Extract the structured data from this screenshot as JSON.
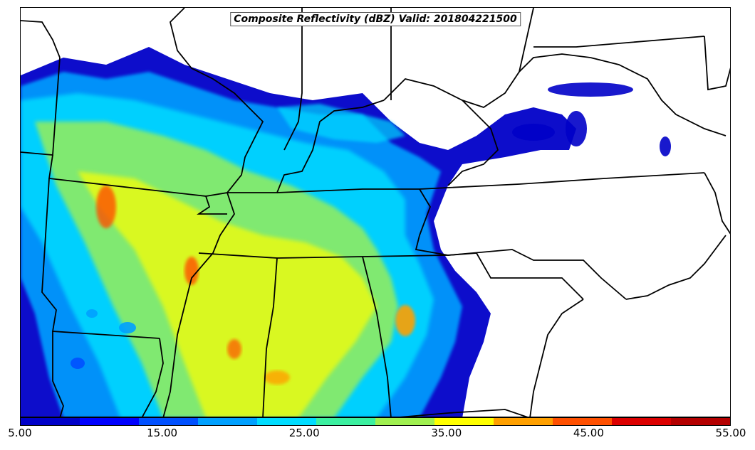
{
  "map": {
    "title": "Composite Reflectivity (dBZ) Valid: 201804221500",
    "colorbar": {
      "colors": [
        "#0000c8",
        "#0000ff",
        "#0050ff",
        "#00a0ff",
        "#00dcff",
        "#3cf0a0",
        "#a0f050",
        "#ffff00",
        "#ffa000",
        "#ff5000",
        "#dc0000",
        "#b40000"
      ],
      "tick_labels": [
        "5.00",
        "15.00",
        "25.00",
        "35.00",
        "45.00",
        "55.00"
      ]
    },
    "colors": {
      "boundary": "#000000",
      "background": "#ffffff",
      "title_border": "#555555"
    }
  }
}
